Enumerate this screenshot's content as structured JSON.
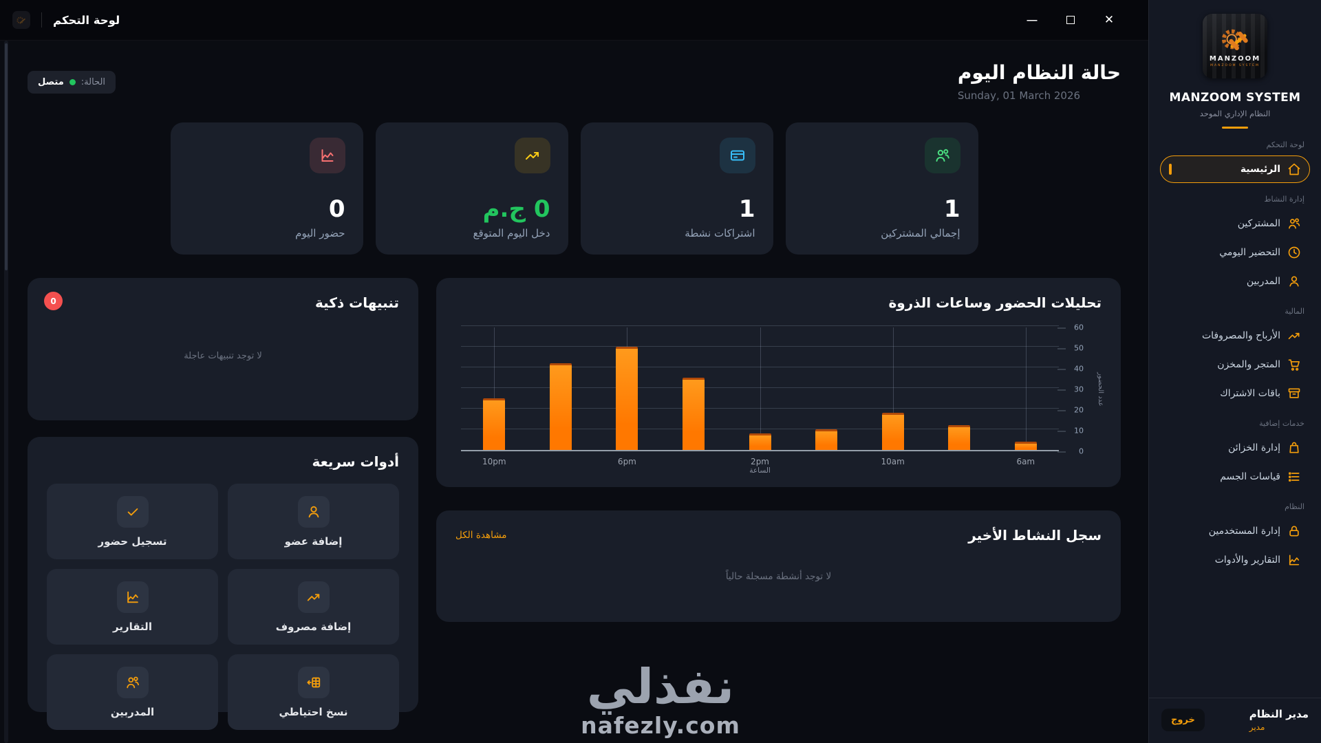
{
  "titlebar": {
    "title": "لوحة التحكم",
    "minimize": "—",
    "close": "✕"
  },
  "sidebar": {
    "brand": {
      "logo_word": "MANZOOM",
      "logo_sub": "MANZOOM SYSTEM",
      "name": "MANZOOM SYSTEM",
      "tagline": "النظام الإداري الموحد"
    },
    "sections": [
      {
        "label": "لوحة التحكم",
        "items": [
          {
            "label": "الرئيسية",
            "icon": "home",
            "active": true
          }
        ]
      },
      {
        "label": "إدارة النشاط",
        "items": [
          {
            "label": "المشتركين",
            "icon": "users"
          },
          {
            "label": "التحضير اليومي",
            "icon": "clock"
          },
          {
            "label": "المدربين",
            "icon": "user"
          }
        ]
      },
      {
        "label": "المالية",
        "items": [
          {
            "label": "الأرباح والمصروفات",
            "icon": "trending-up"
          },
          {
            "label": "المتجر والمخزن",
            "icon": "cart"
          },
          {
            "label": "باقات الاشتراك",
            "icon": "archive"
          }
        ]
      },
      {
        "label": "خدمات إضافية",
        "items": [
          {
            "label": "إدارة الخزائن",
            "icon": "bag"
          },
          {
            "label": "قياسات الجسم",
            "icon": "list"
          }
        ]
      },
      {
        "label": "النظام",
        "items": [
          {
            "label": "إدارة المستخدمين",
            "icon": "lock"
          },
          {
            "label": "التقارير والأدوات",
            "icon": "chart"
          }
        ]
      }
    ],
    "footer": {
      "user_name": "مدير النظام",
      "user_role": "مدير",
      "logout_label": "خروج"
    }
  },
  "header": {
    "title": "حالة النظام اليوم",
    "date": "Sunday, 01 March 2026",
    "status_label": "الحالة:",
    "status_value": "متصل"
  },
  "stats": [
    {
      "label": "إجمالي المشتركين",
      "value": "1",
      "icon": "users",
      "color": "green",
      "value_color": "white"
    },
    {
      "label": "اشتراكات نشطة",
      "value": "1",
      "icon": "credit-card",
      "color": "blue",
      "value_color": "white"
    },
    {
      "label": "دخل اليوم المتوقع",
      "value": "0 ج.م",
      "icon": "trending-up",
      "color": "yellow",
      "value_color": "green"
    },
    {
      "label": "حضور اليوم",
      "value": "0",
      "icon": "chart",
      "color": "red",
      "value_color": "white"
    }
  ],
  "chart_data": {
    "type": "bar",
    "title": "تحليلات الحضور وساعات الذروة",
    "categories": [
      "10pm",
      "",
      "6pm",
      "",
      "2pm",
      "",
      "10am",
      "",
      "6am"
    ],
    "values": [
      25,
      42,
      50,
      35,
      8,
      10,
      18,
      12,
      4
    ],
    "xlabel": "الساعة",
    "ylabel": "عدد الحضور",
    "ylim": [
      0,
      60
    ],
    "yticks": [
      0,
      10,
      20,
      30,
      40,
      50,
      60
    ],
    "grid": true,
    "legend": "none",
    "y_axis_position": "right",
    "bar_color": "#ff8a00"
  },
  "alerts": {
    "title": "تنبيهات ذكية",
    "badge": "0",
    "empty": "لا توجد تنبيهات عاجلة"
  },
  "quick_tools": {
    "title": "أدوات سريعة",
    "buttons": [
      {
        "label": "إضافة عضو",
        "icon": "user"
      },
      {
        "label": "تسجيل حضور",
        "icon": "check"
      },
      {
        "label": "إضافة مصروف",
        "icon": "trending-up"
      },
      {
        "label": "التقارير",
        "icon": "chart"
      },
      {
        "label": "نسخ احتياطي",
        "icon": "backup"
      },
      {
        "label": "المدربين",
        "icon": "users"
      }
    ]
  },
  "activity": {
    "title": "سجل النشاط الأخير",
    "view_all": "مشاهدة الكل",
    "empty": "لا توجد أنشطة مسجلة حالياً"
  },
  "watermark": {
    "arabic": "نفذلي",
    "domain": "nafezly.com"
  },
  "colors": {
    "accent": "#f59e0b",
    "bar": "#ff8a00",
    "green": "#22c55e",
    "red": "#f4504f",
    "blue": "#38bdf8",
    "yellow": "#facc15"
  }
}
